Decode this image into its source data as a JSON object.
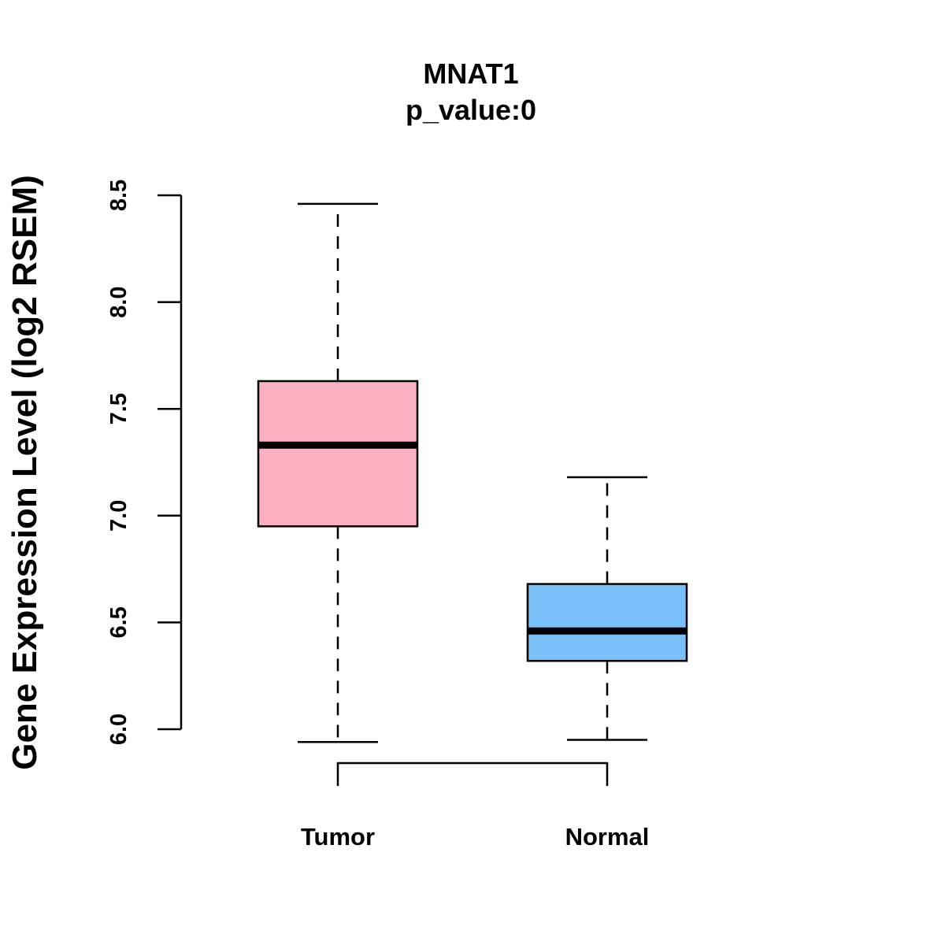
{
  "chart_data": {
    "type": "boxplot",
    "title": "MNAT1",
    "subtitle": "p_value:0",
    "ylabel": "Gene Expression Level (log2 RSEM)",
    "xlabel": "",
    "ylim": [
      6.0,
      8.5
    ],
    "y_ticks": [
      6.0,
      6.5,
      7.0,
      7.5,
      8.0,
      8.5
    ],
    "y_tick_labels": [
      "6.0",
      "6.5",
      "7.0",
      "7.5",
      "8.0",
      "8.5"
    ],
    "categories": [
      "Tumor",
      "Normal"
    ],
    "series": [
      {
        "name": "Tumor",
        "whisker_low": 5.94,
        "q1": 6.95,
        "median": 7.33,
        "q3": 7.63,
        "whisker_high": 8.46,
        "color": "#FBB1C2"
      },
      {
        "name": "Normal",
        "whisker_low": 5.95,
        "q1": 6.32,
        "median": 6.46,
        "q3": 6.68,
        "whisker_high": 7.18,
        "color": "#79C1F8"
      }
    ],
    "comparison_bracket": [
      "Tumor",
      "Normal"
    ],
    "grid": false
  }
}
